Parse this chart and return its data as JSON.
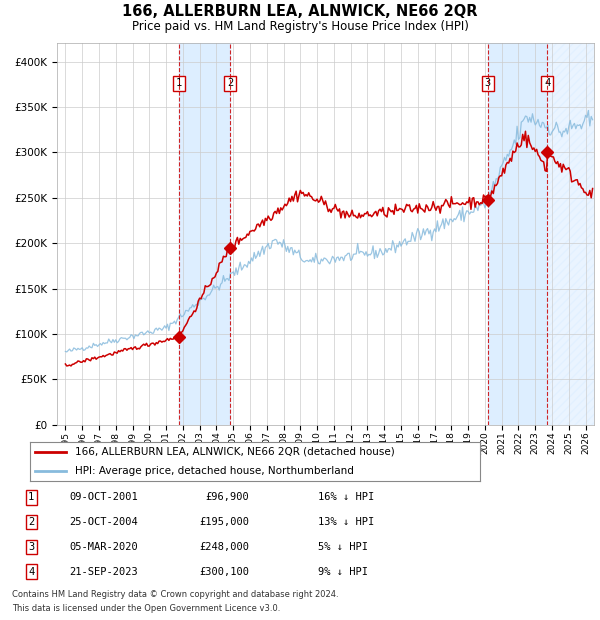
{
  "title": "166, ALLERBURN LEA, ALNWICK, NE66 2QR",
  "subtitle": "Price paid vs. HM Land Registry's House Price Index (HPI)",
  "legend_line1": "166, ALLERBURN LEA, ALNWICK, NE66 2QR (detached house)",
  "legend_line2": "HPI: Average price, detached house, Northumberland",
  "footer1": "Contains HM Land Registry data © Crown copyright and database right 2024.",
  "footer2": "This data is licensed under the Open Government Licence v3.0.",
  "transactions": [
    {
      "num": 1,
      "date": "09-OCT-2001",
      "price": 96900,
      "hpi_diff": "16% ↓ HPI",
      "x_year": 2001.77
    },
    {
      "num": 2,
      "date": "25-OCT-2004",
      "price": 195000,
      "hpi_diff": "13% ↓ HPI",
      "x_year": 2004.82
    },
    {
      "num": 3,
      "date": "05-MAR-2020",
      "price": 248000,
      "hpi_diff": "5% ↓ HPI",
      "x_year": 2020.18
    },
    {
      "num": 4,
      "date": "21-SEP-2023",
      "price": 300100,
      "hpi_diff": "9% ↓ HPI",
      "x_year": 2023.72
    }
  ],
  "price_color": "#cc0000",
  "hpi_color": "#88bbdd",
  "bg_color": "#ffffff",
  "grid_color": "#cccccc",
  "shade_color": "#ddeeff",
  "vline_color": "#cc0000",
  "marker_color": "#cc0000",
  "ylim": [
    0,
    420000
  ],
  "xlim": [
    1994.5,
    2026.5
  ],
  "yticks": [
    0,
    50000,
    100000,
    150000,
    200000,
    250000,
    300000,
    350000,
    400000
  ]
}
